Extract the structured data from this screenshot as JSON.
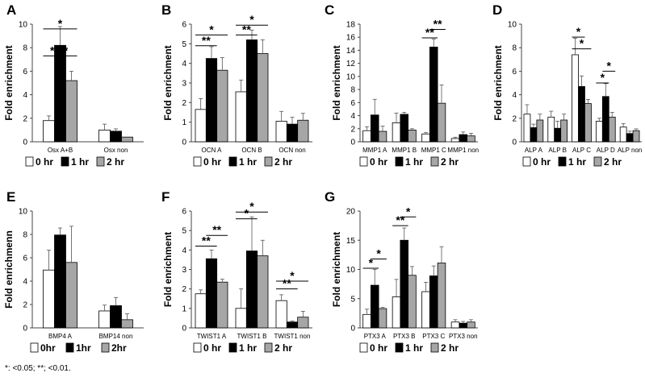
{
  "legend_labels": [
    "0 hr",
    "1 hr",
    "2 hr"
  ],
  "legend_labels_e": [
    "0hr",
    "1hr",
    "2hr"
  ],
  "series_colors": [
    "#ffffff",
    "#000000",
    "#a6a6a6"
  ],
  "footnote": "*: <0.05; **; <0.01.",
  "chart_data": [
    {
      "type": "bar",
      "panel": "A",
      "ylabel": "Fold enrichment",
      "categories": [
        "Osx A+B",
        "Osx non"
      ],
      "ylim": [
        0,
        10
      ],
      "yticks": [
        0,
        2,
        4,
        6,
        8,
        10
      ],
      "series": [
        {
          "name": "0 hr",
          "values": [
            1.8,
            1.0
          ],
          "errors": [
            0.4,
            0.5
          ]
        },
        {
          "name": "1 hr",
          "values": [
            8.2,
            0.9
          ],
          "errors": [
            1.6,
            0.2
          ]
        },
        {
          "name": "2 hr",
          "values": [
            5.2,
            0.4
          ],
          "errors": [
            0.8,
            0.0
          ]
        }
      ],
      "significance": [
        {
          "from": [
            0,
            0
          ],
          "to": [
            0,
            1
          ],
          "label": "**",
          "y": 7.3
        },
        {
          "from": [
            0,
            1
          ],
          "to": [
            0,
            2
          ],
          "label": "*",
          "y": 7.3
        },
        {
          "from": [
            0,
            0
          ],
          "to": [
            0,
            2
          ],
          "label": "*",
          "y": 9.6
        }
      ]
    },
    {
      "type": "bar",
      "panel": "B",
      "ylabel": "Fold enrichment",
      "categories": [
        "OCN A",
        "OCN B",
        "OCN non"
      ],
      "ylim": [
        0,
        6
      ],
      "yticks": [
        0,
        1,
        2,
        3,
        4,
        5,
        6
      ],
      "series": [
        {
          "name": "0 hr",
          "values": [
            1.65,
            2.55,
            1.05
          ],
          "errors": [
            0.55,
            0.6,
            0.5
          ]
        },
        {
          "name": "1 hr",
          "values": [
            4.25,
            5.2,
            0.9
          ],
          "errors": [
            0.6,
            0.5,
            0.35
          ]
        },
        {
          "name": "2 hr",
          "values": [
            3.65,
            4.5,
            1.1
          ],
          "errors": [
            0.65,
            0.7,
            0.35
          ]
        }
      ],
      "significance": [
        {
          "from": [
            0,
            0
          ],
          "to": [
            0,
            1
          ],
          "label": "**",
          "y": 4.9
        },
        {
          "from": [
            0,
            0
          ],
          "to": [
            0,
            2
          ],
          "label": "*",
          "y": 5.45
        },
        {
          "from": [
            1,
            0
          ],
          "to": [
            1,
            1
          ],
          "label": "**",
          "y": 5.45
        },
        {
          "from": [
            1,
            0
          ],
          "to": [
            1,
            2
          ],
          "label": "*",
          "y": 5.95
        }
      ]
    },
    {
      "type": "bar",
      "panel": "C",
      "ylabel": "Fold enrichment",
      "categories": [
        "MMP1 A",
        "MMP1 B",
        "MMP1 C",
        "MMP1 non"
      ],
      "ylim": [
        0,
        18
      ],
      "yticks": [
        0,
        2,
        4,
        6,
        8,
        10,
        12,
        14,
        16,
        18
      ],
      "series": [
        {
          "name": "0 hr",
          "values": [
            1.7,
            2.9,
            1.2,
            0.5
          ],
          "errors": [
            0.6,
            1.5,
            0.2,
            0.2
          ]
        },
        {
          "name": "1 hr",
          "values": [
            4.1,
            4.2,
            14.5,
            1.1
          ],
          "errors": [
            2.4,
            0.3,
            1.2,
            0.4
          ]
        },
        {
          "name": "2 hr",
          "values": [
            1.6,
            1.8,
            5.9,
            0.9
          ],
          "errors": [
            0.8,
            0.2,
            2.8,
            0.4
          ]
        }
      ],
      "significance": [
        {
          "from": [
            2,
            0
          ],
          "to": [
            2,
            1
          ],
          "label": "**",
          "y": 15.9
        },
        {
          "from": [
            2,
            1
          ],
          "to": [
            2,
            2
          ],
          "label": "**",
          "y": 17.2
        }
      ]
    },
    {
      "type": "bar",
      "panel": "D",
      "ylabel": "Fold enrichment",
      "categories": [
        "ALP A",
        "ALP B",
        "ALP C",
        "ALP D",
        "ALP non"
      ],
      "ylim": [
        0,
        10
      ],
      "yticks": [
        0,
        2,
        4,
        6,
        8,
        10
      ],
      "series": [
        {
          "name": "0 hr",
          "values": [
            2.35,
            2.1,
            7.4,
            1.75,
            1.25
          ],
          "errors": [
            0.8,
            0.5,
            1.4,
            0.25,
            0.3
          ]
        },
        {
          "name": "1 hr",
          "values": [
            1.2,
            1.15,
            4.7,
            3.85,
            0.7
          ],
          "errors": [
            0.3,
            0.6,
            0.9,
            1.1,
            0.2
          ]
        },
        {
          "name": "2 hr",
          "values": [
            1.85,
            1.85,
            3.25,
            2.1,
            0.95
          ],
          "errors": [
            0.5,
            0.5,
            0.35,
            0.4,
            0.15
          ]
        }
      ],
      "significance": [
        {
          "from": [
            2,
            0
          ],
          "to": [
            2,
            1
          ],
          "label": "*",
          "y": 8.9
        },
        {
          "from": [
            2,
            0
          ],
          "to": [
            2,
            2
          ],
          "label": "*",
          "y": 7.9
        },
        {
          "from": [
            3,
            0
          ],
          "to": [
            3,
            1
          ],
          "label": "*",
          "y": 5.0
        },
        {
          "from": [
            3,
            1
          ],
          "to": [
            3,
            2
          ],
          "label": "*",
          "y": 6.0
        }
      ]
    },
    {
      "type": "bar",
      "panel": "E",
      "ylabel": "Fold enrichmenn",
      "categories": [
        "BMP4 A",
        "BMP14 non"
      ],
      "ylim": [
        0,
        10
      ],
      "yticks": [
        0,
        2,
        4,
        6,
        8,
        10
      ],
      "series": [
        {
          "name": "0hr",
          "values": [
            4.95,
            1.45
          ],
          "errors": [
            1.7,
            0.5
          ]
        },
        {
          "name": "1hr",
          "values": [
            7.95,
            1.9
          ],
          "errors": [
            0.6,
            0.7
          ]
        },
        {
          "name": "2hr",
          "values": [
            5.6,
            0.7
          ],
          "errors": [
            3.1,
            0.5
          ]
        }
      ],
      "significance": []
    },
    {
      "type": "bar",
      "panel": "F",
      "ylabel": "Fold enrichment",
      "categories": [
        "TWIST1 A",
        "TWIST1 B",
        "TWIST1 non"
      ],
      "ylim": [
        0,
        6
      ],
      "yticks": [
        0,
        1,
        2,
        3,
        4,
        5,
        6
      ],
      "series": [
        {
          "name": "0 hr",
          "values": [
            1.75,
            1.0,
            1.4
          ],
          "errors": [
            0.2,
            1.0,
            0.3
          ]
        },
        {
          "name": "1 hr",
          "values": [
            3.55,
            3.95,
            0.3
          ],
          "errors": [
            0.45,
            1.75,
            0.05
          ]
        },
        {
          "name": "2 hr",
          "values": [
            2.35,
            3.7,
            0.55
          ],
          "errors": [
            0.15,
            0.8,
            0.3
          ]
        }
      ],
      "significance": [
        {
          "from": [
            0,
            0
          ],
          "to": [
            0,
            1
          ],
          "label": "**",
          "y": 4.2
        },
        {
          "from": [
            0,
            1
          ],
          "to": [
            0,
            2
          ],
          "label": "**",
          "y": 4.75
        },
        {
          "from": [
            1,
            0
          ],
          "to": [
            1,
            1
          ],
          "label": "*",
          "y": 5.6
        },
        {
          "from": [
            1,
            0
          ],
          "to": [
            1,
            2
          ],
          "label": "*",
          "y": 5.95
        },
        {
          "from": [
            2,
            0
          ],
          "to": [
            2,
            1
          ],
          "label": "**",
          "y": 2.0
        },
        {
          "from": [
            2,
            0
          ],
          "to": [
            2,
            2
          ],
          "label": "*",
          "y": 2.4
        }
      ]
    },
    {
      "type": "bar",
      "panel": "G",
      "ylabel": "Fold enrichment",
      "categories": [
        "PTX3 A",
        "PTX3 B",
        "PTX3 C",
        "PTX3 non"
      ],
      "ylim": [
        0,
        20
      ],
      "yticks": [
        0,
        5,
        10,
        15,
        20
      ],
      "series": [
        {
          "name": "0 hr",
          "values": [
            2.3,
            5.3,
            6.2,
            1.0
          ],
          "errors": [
            0.9,
            3.0,
            1.6,
            0.4
          ]
        },
        {
          "name": "1 hr",
          "values": [
            7.3,
            15.0,
            8.9,
            0.8
          ],
          "errors": [
            2.7,
            2.1,
            1.7,
            0.3
          ]
        },
        {
          "name": "2 hr",
          "values": [
            3.3,
            9.0,
            11.1,
            1.0
          ],
          "errors": [
            0.2,
            1.5,
            2.8,
            0.4
          ]
        }
      ],
      "significance": [
        {
          "from": [
            0,
            0
          ],
          "to": [
            0,
            1
          ],
          "label": "*",
          "y": 10.2
        },
        {
          "from": [
            0,
            1
          ],
          "to": [
            0,
            2
          ],
          "label": "*",
          "y": 11.8
        },
        {
          "from": [
            1,
            0
          ],
          "to": [
            1,
            1
          ],
          "label": "**",
          "y": 17.5
        },
        {
          "from": [
            1,
            1
          ],
          "to": [
            1,
            2
          ],
          "label": "*",
          "y": 19.0
        }
      ]
    }
  ]
}
